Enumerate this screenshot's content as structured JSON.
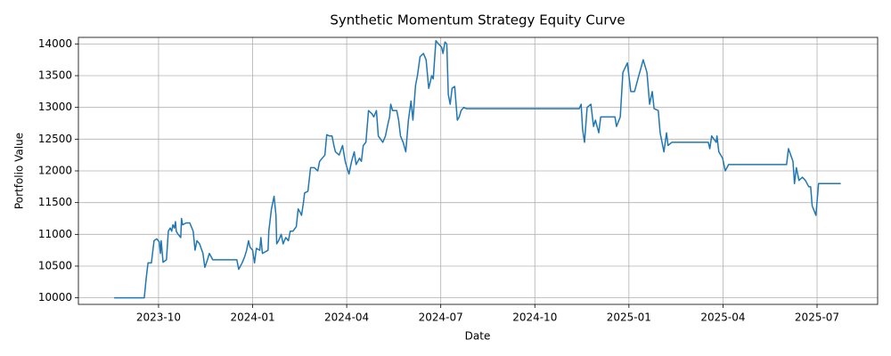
{
  "chart_data": {
    "type": "line",
    "title": "Synthetic Momentum Strategy Equity Curve",
    "x_label": "Date",
    "y_label": "Portfolio Value",
    "color": "#1f77b4",
    "grid": true,
    "xlim": [
      2023.537,
      2025.661
    ],
    "ylim": [
      9897,
      14103
    ],
    "xticks": [
      {
        "value": 2023.75,
        "label": "2023-10"
      },
      {
        "value": 2024.0,
        "label": "2024-01"
      },
      {
        "value": 2024.25,
        "label": "2024-04"
      },
      {
        "value": 2024.5,
        "label": "2024-07"
      },
      {
        "value": 2024.75,
        "label": "2024-10"
      },
      {
        "value": 2025.0,
        "label": "2025-01"
      },
      {
        "value": 2025.25,
        "label": "2025-04"
      },
      {
        "value": 2025.5,
        "label": "2025-07"
      }
    ],
    "yticks": [
      10000,
      10500,
      11000,
      11500,
      12000,
      12500,
      13000,
      13500,
      14000
    ],
    "x": [
      2023.632,
      2023.712,
      2023.717,
      2023.722,
      2023.731,
      2023.738,
      2023.745,
      2023.752,
      2023.755,
      2023.757,
      2023.762,
      2023.771,
      2023.776,
      2023.781,
      2023.785,
      2023.788,
      2023.792,
      2023.795,
      2023.797,
      2023.802,
      2023.809,
      2023.811,
      2023.814,
      2023.823,
      2023.833,
      2023.842,
      2023.847,
      2023.852,
      2023.859,
      2023.868,
      2023.873,
      2023.88,
      2023.885,
      2023.894,
      2023.908,
      2023.958,
      2023.963,
      2023.972,
      2023.979,
      2023.984,
      2023.989,
      2023.993,
      2024.0,
      2024.005,
      2024.01,
      2024.019,
      2024.022,
      2024.026,
      2024.041,
      2024.043,
      2024.05,
      2024.057,
      2024.062,
      2024.064,
      2024.069,
      2024.076,
      2024.081,
      2024.088,
      2024.095,
      2024.1,
      2024.107,
      2024.116,
      2024.121,
      2024.126,
      2024.13,
      2024.135,
      2024.138,
      2024.147,
      2024.154,
      2024.164,
      2024.173,
      2024.178,
      2024.192,
      2024.197,
      2024.204,
      2024.211,
      2024.216,
      2024.22,
      2024.23,
      2024.239,
      2024.246,
      2024.251,
      2024.256,
      2024.263,
      2024.27,
      2024.275,
      2024.284,
      2024.289,
      2024.294,
      2024.301,
      2024.308,
      2024.317,
      2024.322,
      2024.329,
      2024.334,
      2024.346,
      2024.353,
      2024.36,
      2024.364,
      2024.367,
      2024.372,
      2024.383,
      2024.388,
      2024.393,
      2024.4,
      2024.407,
      2024.414,
      2024.421,
      2024.426,
      2024.433,
      2024.438,
      2024.445,
      2024.454,
      2024.461,
      2024.468,
      2024.476,
      2024.48,
      2024.487,
      2024.494,
      2024.502,
      2024.506,
      2024.511,
      2024.516,
      2024.52,
      2024.525,
      2024.53,
      2024.537,
      2024.544,
      2024.549,
      2024.554,
      2024.561,
      2024.568,
      2024.868,
      2024.873,
      2024.877,
      2024.882,
      2024.889,
      2024.899,
      2024.906,
      2024.911,
      2024.92,
      2024.925,
      2024.963,
      2024.967,
      2024.977,
      2024.984,
      2024.996,
      2025.005,
      2025.015,
      2025.024,
      2025.031,
      2025.038,
      2025.048,
      2025.055,
      2025.062,
      2025.067,
      2025.078,
      2025.083,
      2025.093,
      2025.1,
      2025.104,
      2025.114,
      2025.211,
      2025.215,
      2025.22,
      2025.232,
      2025.234,
      2025.239,
      2025.249,
      2025.256,
      2025.265,
      2025.419,
      2025.424,
      2025.436,
      2025.44,
      2025.445,
      2025.452,
      2025.461,
      2025.469,
      2025.478,
      2025.483,
      2025.487,
      2025.497,
      2025.504,
      2025.563
    ],
    "values": [
      10000,
      10000,
      10300,
      10550,
      10550,
      10900,
      10930,
      10880,
      10700,
      10900,
      10560,
      10600,
      11050,
      11100,
      11050,
      11150,
      11100,
      11200,
      11050,
      11000,
      10950,
      11250,
      11150,
      11180,
      11180,
      11050,
      10750,
      10900,
      10850,
      10700,
      10480,
      10600,
      10700,
      10600,
      10600,
      10600,
      10450,
      10550,
      10650,
      10750,
      10900,
      10800,
      10750,
      10550,
      10780,
      10750,
      10950,
      10700,
      10750,
      11050,
      11400,
      11600,
      11300,
      10850,
      10900,
      11000,
      10850,
      10950,
      10900,
      11050,
      11050,
      11120,
      11400,
      11350,
      11300,
      11500,
      11650,
      11680,
      12050,
      12050,
      12000,
      12150,
      12250,
      12570,
      12550,
      12550,
      12400,
      12300,
      12250,
      12400,
      12150,
      12050,
      11950,
      12150,
      12300,
      12100,
      12200,
      12150,
      12400,
      12450,
      12950,
      12900,
      12850,
      12950,
      12550,
      12450,
      12550,
      12750,
      12850,
      13050,
      12950,
      12950,
      12800,
      12550,
      12450,
      12300,
      12800,
      13100,
      12800,
      13350,
      13500,
      13800,
      13850,
      13750,
      13300,
      13500,
      13450,
      14050,
      14000,
      13950,
      13850,
      14030,
      14000,
      13200,
      13050,
      13300,
      13330,
      12800,
      12850,
      12950,
      13000,
      12980,
      12980,
      13050,
      12650,
      12450,
      13000,
      13050,
      12700,
      12800,
      12600,
      12850,
      12850,
      12700,
      12850,
      13550,
      13700,
      13250,
      13250,
      13450,
      13600,
      13750,
      13550,
      13050,
      13250,
      12980,
      12950,
      12600,
      12300,
      12600,
      12400,
      12450,
      12450,
      12350,
      12550,
      12450,
      12550,
      12300,
      12200,
      12000,
      12100,
      12100,
      12350,
      12150,
      11800,
      12050,
      11850,
      11900,
      11850,
      11750,
      11750,
      11450,
      11300,
      11800,
      11800
    ]
  }
}
